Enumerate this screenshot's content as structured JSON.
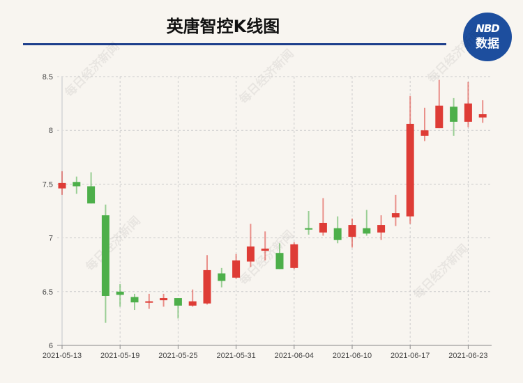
{
  "header": {
    "title": "英唐智控K线图"
  },
  "logo": {
    "line1": "NBD",
    "line2": "数据"
  },
  "watermark": "每日经济新闻",
  "colors": {
    "up": "#de3c36",
    "down": "#4daf4a",
    "title_rule": "#1e3f8c",
    "logo": "#1d4e9e"
  },
  "chart_data": {
    "type": "candlestick",
    "title": "英唐智控K线图",
    "ylim": [
      6,
      8.5
    ],
    "yticks": [
      "6",
      "6.5",
      "7",
      "7.5",
      "8",
      "8.5"
    ],
    "xtick_labels": [
      "2021-05-13",
      "2021-05-19",
      "2021-05-25",
      "2021-05-31",
      "2021-06-04",
      "2021-06-10",
      "2021-06-17",
      "2021-06-23"
    ],
    "grid": true,
    "dates": [
      "2021-05-13",
      "2021-05-14",
      "2021-05-17",
      "2021-05-18",
      "2021-05-19",
      "2021-05-20",
      "2021-05-21",
      "2021-05-24",
      "2021-05-25",
      "2021-05-26",
      "2021-05-27",
      "2021-05-28",
      "2021-05-31",
      "2021-06-01",
      "2021-06-02",
      "2021-06-03",
      "2021-06-04",
      "2021-06-07",
      "2021-06-08",
      "2021-06-09",
      "2021-06-10",
      "2021-06-11",
      "2021-06-15",
      "2021-06-16",
      "2021-06-17",
      "2021-06-18",
      "2021-06-21",
      "2021-06-22",
      "2021-06-23",
      "2021-06-24"
    ],
    "ohlc": [
      [
        7.46,
        7.62,
        7.4,
        7.51
      ],
      [
        7.52,
        7.57,
        7.41,
        7.48
      ],
      [
        7.48,
        7.61,
        7.32,
        7.32
      ],
      [
        7.21,
        7.31,
        6.21,
        6.46
      ],
      [
        6.5,
        6.57,
        6.36,
        6.47
      ],
      [
        6.45,
        6.48,
        6.33,
        6.4
      ],
      [
        6.4,
        6.48,
        6.34,
        6.41
      ],
      [
        6.42,
        6.48,
        6.36,
        6.44
      ],
      [
        6.44,
        6.44,
        6.25,
        6.37
      ],
      [
        6.37,
        6.52,
        6.36,
        6.41
      ],
      [
        6.39,
        6.84,
        6.38,
        6.7
      ],
      [
        6.67,
        6.72,
        6.54,
        6.6
      ],
      [
        6.63,
        6.85,
        6.62,
        6.79
      ],
      [
        6.78,
        7.13,
        6.73,
        6.92
      ],
      [
        6.88,
        7.06,
        6.79,
        6.9
      ],
      [
        6.86,
        6.95,
        6.71,
        6.71
      ],
      [
        6.72,
        6.96,
        6.71,
        6.94
      ],
      [
        7.09,
        7.25,
        7.03,
        7.08
      ],
      [
        7.05,
        7.37,
        7.02,
        7.14
      ],
      [
        7.09,
        7.2,
        6.95,
        6.98
      ],
      [
        7.01,
        7.18,
        6.91,
        7.12
      ],
      [
        7.09,
        7.26,
        7.02,
        7.04
      ],
      [
        7.05,
        7.21,
        6.98,
        7.12
      ],
      [
        7.19,
        7.4,
        7.11,
        7.23
      ],
      [
        7.2,
        8.32,
        7.13,
        8.06
      ],
      [
        7.95,
        8.21,
        7.9,
        8.0
      ],
      [
        8.02,
        8.47,
        8.02,
        8.23
      ],
      [
        8.22,
        8.3,
        7.95,
        8.08
      ],
      [
        8.08,
        8.45,
        8.03,
        8.25
      ],
      [
        8.12,
        8.28,
        8.07,
        8.15
      ]
    ]
  }
}
